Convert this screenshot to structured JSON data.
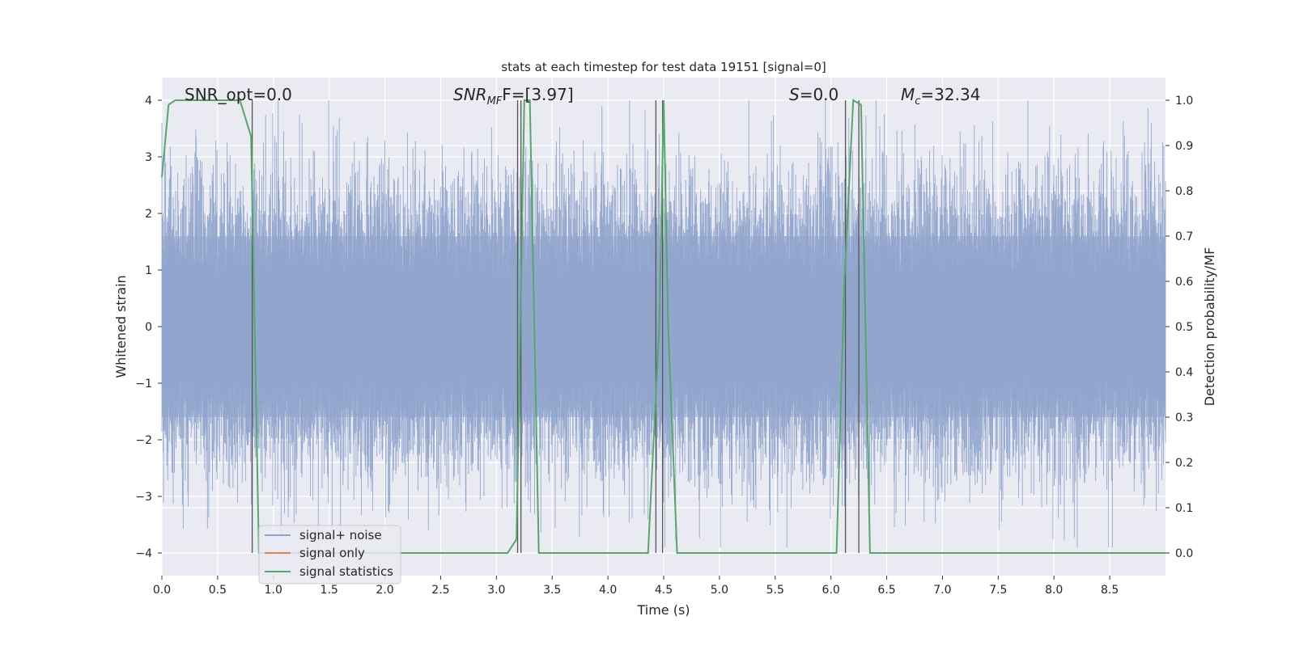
{
  "chart_data": {
    "type": "line",
    "title": "stats at each timestep for test data 19151 [signal=0]",
    "xlabel": "Time (s)",
    "ylabel": "Whitened strain",
    "ylabel_right": "Detection probability/MF",
    "xlim": [
      0,
      9.0
    ],
    "ylim": [
      -4.4,
      4.4
    ],
    "ylim_right": [
      -0.05,
      1.05
    ],
    "x_ticks": [
      0.0,
      0.5,
      1.0,
      1.5,
      2.0,
      2.5,
      3.0,
      3.5,
      4.0,
      4.5,
      5.0,
      5.5,
      6.0,
      6.5,
      7.0,
      7.5,
      8.0,
      8.5
    ],
    "x_tick_labels": [
      "0.0",
      "0.5",
      "1.0",
      "1.5",
      "2.0",
      "2.5",
      "3.0",
      "3.5",
      "4.0",
      "4.5",
      "5.0",
      "5.5",
      "6.0",
      "6.5",
      "7.0",
      "7.5",
      "8.0",
      "8.5"
    ],
    "y_ticks": [
      -4,
      -3,
      -2,
      -1,
      0,
      1,
      2,
      3,
      4
    ],
    "y_tick_labels": [
      "−4",
      "−3",
      "−2",
      "−1",
      "0",
      "1",
      "2",
      "3",
      "4"
    ],
    "y_right_ticks": [
      0.0,
      0.1,
      0.2,
      0.3,
      0.4,
      0.5,
      0.6,
      0.7,
      0.8,
      0.9,
      1.0
    ],
    "y_right_tick_labels": [
      "0.0",
      "0.1",
      "0.2",
      "0.3",
      "0.4",
      "0.5",
      "0.6",
      "0.7",
      "0.8",
      "0.9",
      "1.0"
    ],
    "grid": true,
    "legend_placement": "lower-left",
    "annotations": {
      "snr_opt": "SNR_opt=0.0",
      "snr_mf_label": "SNR",
      "snr_mf_sub": "MF",
      "snr_mf_tail": "F=[3.97]",
      "s_italic": "S",
      "s_value": "=0.0",
      "mc_italic": "M",
      "mc_sub": "c",
      "mc_value": "=32.34"
    },
    "series": [
      {
        "name": "signal+ noise",
        "color": "#8fa4cc",
        "kind": "noise",
        "typical_range": [
          -1.6,
          1.6
        ],
        "max": 4.0,
        "min": -3.9,
        "x_range": [
          0,
          9.0
        ]
      },
      {
        "name": "signal only",
        "color": "#dd8452",
        "kind": "flat",
        "values": []
      },
      {
        "name": "signal statistics",
        "color": "#55a868",
        "axis": "right",
        "x": [
          0.0,
          0.06,
          0.12,
          0.7,
          0.8,
          0.87,
          1.0,
          3.1,
          3.18,
          3.25,
          3.3,
          3.38,
          3.6,
          4.36,
          4.46,
          4.5,
          4.54,
          4.62,
          6.05,
          6.12,
          6.2,
          6.27,
          6.35,
          6.44,
          9.0
        ],
        "values": [
          0.83,
          0.99,
          1.0,
          1.0,
          0.92,
          0.0,
          0.0,
          0.0,
          0.03,
          1.0,
          1.0,
          0.0,
          0.0,
          0.0,
          0.5,
          1.0,
          0.5,
          0.0,
          0.0,
          0.6,
          1.0,
          0.99,
          0.0,
          0.0,
          0.0
        ]
      }
    ],
    "vertical_lines_x": [
      0.81,
      3.19,
      3.22,
      4.43,
      4.49,
      6.13,
      6.25
    ],
    "vertical_line_color": "#555555"
  }
}
